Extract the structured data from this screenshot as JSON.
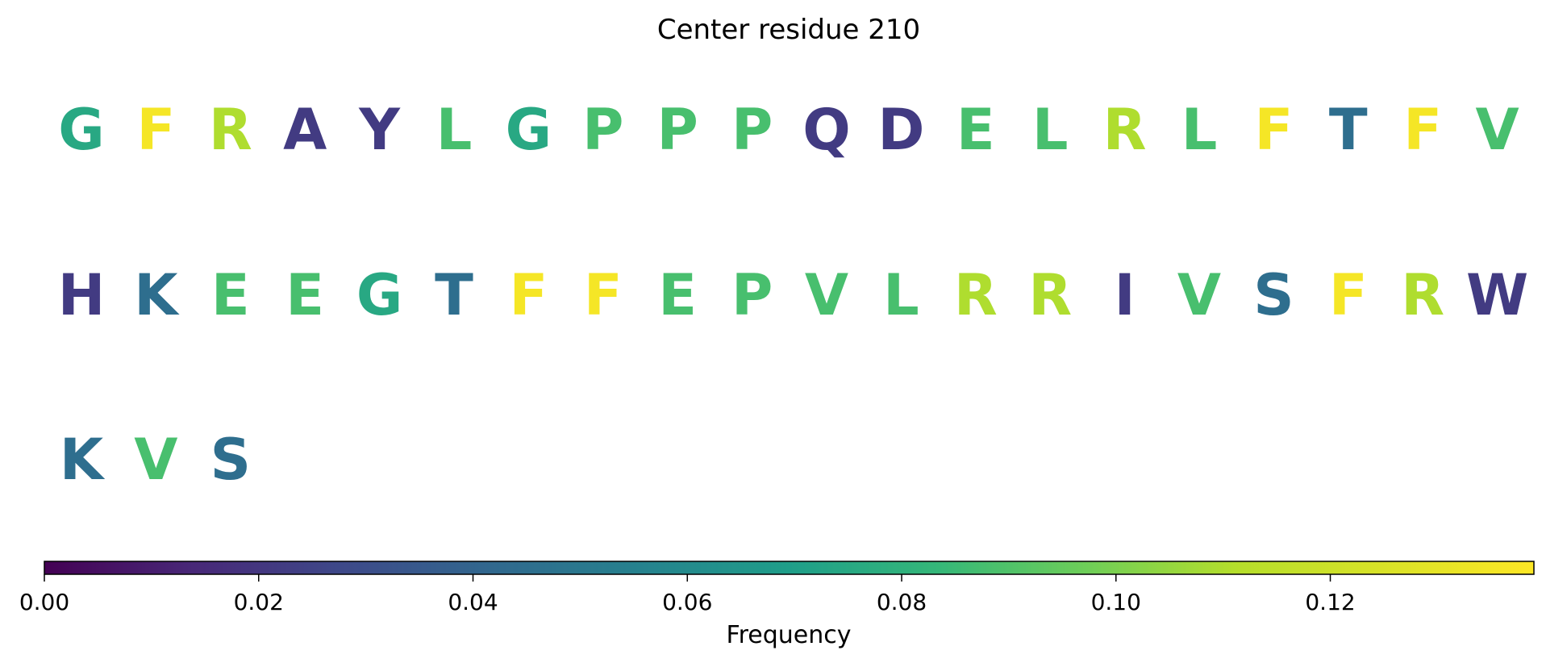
{
  "chart_data": {
    "type": "table",
    "title": "Center residue 210",
    "residues": [
      {
        "letter": "G",
        "value": 0.075
      },
      {
        "letter": "F",
        "value": 0.136
      },
      {
        "letter": "R",
        "value": 0.11
      },
      {
        "letter": "A",
        "value": 0.022
      },
      {
        "letter": "Y",
        "value": 0.022
      },
      {
        "letter": "L",
        "value": 0.088
      },
      {
        "letter": "G",
        "value": 0.075
      },
      {
        "letter": "P",
        "value": 0.088
      },
      {
        "letter": "P",
        "value": 0.088
      },
      {
        "letter": "P",
        "value": 0.088
      },
      {
        "letter": "Q",
        "value": 0.022
      },
      {
        "letter": "D",
        "value": 0.022
      },
      {
        "letter": "E",
        "value": 0.088
      },
      {
        "letter": "L",
        "value": 0.088
      },
      {
        "letter": "R",
        "value": 0.11
      },
      {
        "letter": "L",
        "value": 0.088
      },
      {
        "letter": "F",
        "value": 0.136
      },
      {
        "letter": "T",
        "value": 0.045
      },
      {
        "letter": "F",
        "value": 0.136
      },
      {
        "letter": "V",
        "value": 0.088
      },
      {
        "letter": "H",
        "value": 0.022
      },
      {
        "letter": "K",
        "value": 0.045
      },
      {
        "letter": "E",
        "value": 0.088
      },
      {
        "letter": "E",
        "value": 0.088
      },
      {
        "letter": "G",
        "value": 0.075
      },
      {
        "letter": "T",
        "value": 0.045
      },
      {
        "letter": "F",
        "value": 0.136
      },
      {
        "letter": "F",
        "value": 0.136
      },
      {
        "letter": "E",
        "value": 0.088
      },
      {
        "letter": "P",
        "value": 0.088
      },
      {
        "letter": "V",
        "value": 0.088
      },
      {
        "letter": "L",
        "value": 0.088
      },
      {
        "letter": "R",
        "value": 0.11
      },
      {
        "letter": "R",
        "value": 0.11
      },
      {
        "letter": "I",
        "value": 0.022
      },
      {
        "letter": "V",
        "value": 0.088
      },
      {
        "letter": "S",
        "value": 0.045
      },
      {
        "letter": "F",
        "value": 0.136
      },
      {
        "letter": "R",
        "value": 0.11
      },
      {
        "letter": "W",
        "value": 0.022
      },
      {
        "letter": "K",
        "value": 0.045
      },
      {
        "letter": "V",
        "value": 0.088
      },
      {
        "letter": "S",
        "value": 0.045
      }
    ],
    "residues_per_row": 20,
    "colorbar": {
      "label": "Frequency",
      "range": [
        0,
        0.139
      ],
      "ticks": [
        0.0,
        0.02,
        0.04,
        0.06,
        0.08,
        0.1,
        0.12
      ],
      "tick_labels": [
        "0.00",
        "0.02",
        "0.04",
        "0.06",
        "0.08",
        "0.10",
        "0.12"
      ],
      "colormap": "viridis",
      "orientation": "horizontal",
      "placement": "bottom"
    }
  }
}
